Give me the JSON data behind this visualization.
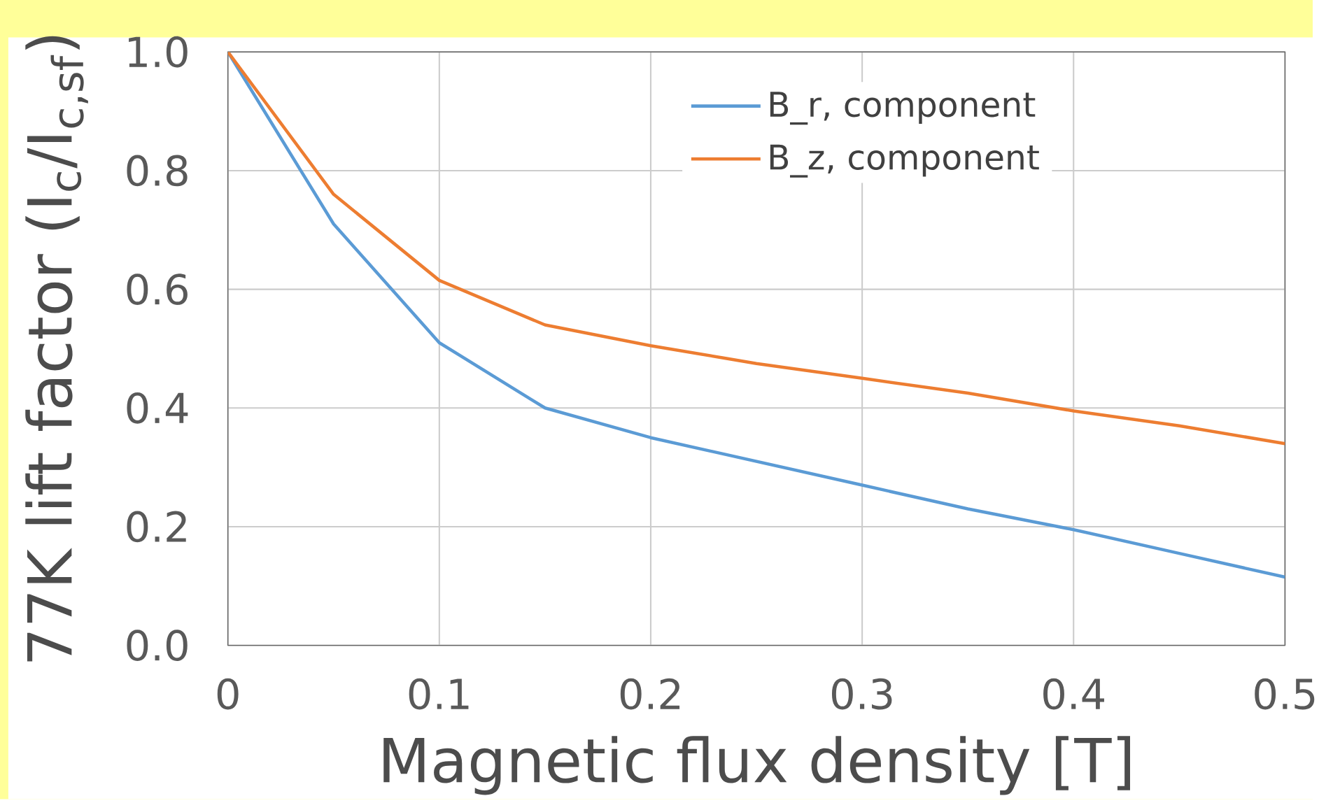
{
  "chart_data": {
    "type": "line",
    "xlabel": "Magnetic flux density [T]",
    "ylabel": "77K lift factor (I$_{c}$/I$_{c,sf}$)",
    "x": [
      0,
      0.05,
      0.1,
      0.15,
      0.2,
      0.25,
      0.3,
      0.35,
      0.4,
      0.45,
      0.5
    ],
    "series": [
      {
        "name": "B_r, component",
        "color": "#5b9bd5",
        "values": [
          1.0,
          0.71,
          0.51,
          0.4,
          0.35,
          0.31,
          0.27,
          0.23,
          0.195,
          0.155,
          0.115
        ]
      },
      {
        "name": "B_z, component",
        "color": "#ed7d31",
        "values": [
          1.0,
          0.76,
          0.615,
          0.54,
          0.505,
          0.475,
          0.45,
          0.425,
          0.395,
          0.37,
          0.34
        ]
      }
    ],
    "xlim": [
      0,
      0.5
    ],
    "ylim": [
      0,
      1.0
    ],
    "xticks": [
      0,
      0.1,
      0.2,
      0.3,
      0.4,
      0.5
    ],
    "yticks": [
      {
        "value": 0,
        "label": "0.0"
      },
      {
        "value": 0.2,
        "label": "0.2"
      },
      {
        "value": 0.4,
        "label": "0.4"
      },
      {
        "value": 0.6,
        "label": "0.6"
      },
      {
        "value": 0.8,
        "label": "0.8"
      },
      {
        "value": 1.0,
        "label": "1.0"
      }
    ],
    "grid": true,
    "legend": "top right"
  }
}
